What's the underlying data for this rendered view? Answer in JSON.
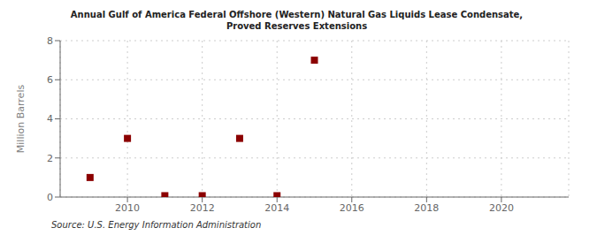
{
  "chart_data": {
    "type": "scatter",
    "title": "Annual Gulf of America Federal Offshore (Western) Natural Gas Liquids Lease Condensate,\nProved Reserves Extensions",
    "ylabel": "Million Barrels",
    "annotations": [
      "Source: U.S. Energy Information Administration"
    ],
    "x": [
      2009,
      2010,
      2011,
      2012,
      2013,
      2014,
      2015
    ],
    "values": [
      1.0,
      3.0,
      0.07,
      0.07,
      3.0,
      0.07,
      7.0
    ],
    "color": "#8b0000",
    "marker": "square",
    "xlim": [
      2008.2,
      2021.8
    ],
    "ylim": [
      0,
      8
    ],
    "xticks": [
      2010,
      2012,
      2014,
      2016,
      2018,
      2020
    ],
    "yticks": [
      0,
      2,
      4,
      6,
      8
    ],
    "grid": true
  }
}
